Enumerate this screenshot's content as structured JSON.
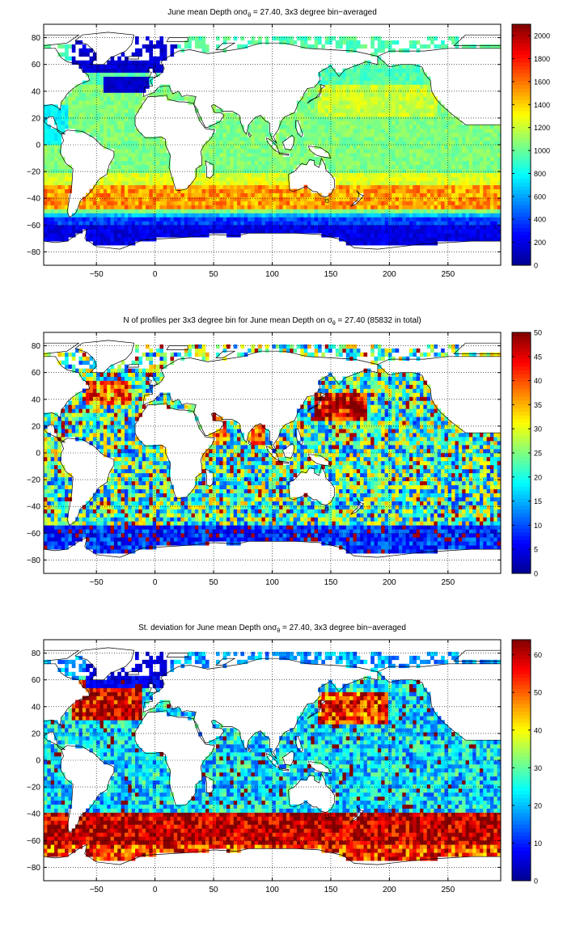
{
  "colors": {
    "jet": [
      "#00008f",
      "#0000ff",
      "#0080ff",
      "#00ffff",
      "#80ff80",
      "#ffff00",
      "#ff8000",
      "#ff0000",
      "#800000"
    ],
    "land": "#ffffff",
    "coast": "#000000"
  },
  "chart_data": [
    {
      "type": "heatmap",
      "title": "June mean Depth on σθ = 27.40, 3x3 degree bin−averaged",
      "title_parts": {
        "pre": "June mean Depth on",
        "sym": "σ",
        "sub": "θ",
        "post": " = 27.40, 3x3 degree bin−averaged"
      },
      "xlabel": "",
      "ylabel": "",
      "xlim": [
        -95,
        295
      ],
      "ylim": [
        -90,
        90
      ],
      "xticks": [
        -50,
        0,
        50,
        100,
        150,
        200,
        250
      ],
      "yticks": [
        -80,
        -60,
        -40,
        -20,
        0,
        20,
        40,
        60,
        80
      ],
      "colorbar": {
        "min": 0,
        "max": 2100,
        "ticks": [
          0,
          200,
          400,
          600,
          800,
          1000,
          1200,
          1400,
          1600,
          1800,
          2000
        ]
      },
      "grid": true,
      "field": "depth"
    },
    {
      "type": "heatmap",
      "title": "N of profiles per 3x3 degree bin for June mean Depth on σθ = 27.40 (85832 in total)",
      "title_parts": {
        "pre": "N of profiles per 3x3 degree bin for June mean Depth on ",
        "sym": "σ",
        "sub": "θ",
        "post": " = 27.40 (85832 in total)"
      },
      "xlabel": "",
      "ylabel": "",
      "xlim": [
        -95,
        295
      ],
      "ylim": [
        -90,
        90
      ],
      "xticks": [
        -50,
        0,
        50,
        100,
        150,
        200,
        250
      ],
      "yticks": [
        -80,
        -60,
        -40,
        -20,
        0,
        20,
        40,
        60,
        80
      ],
      "colorbar": {
        "min": 0,
        "max": 50,
        "ticks": [
          0,
          5,
          10,
          15,
          20,
          25,
          30,
          35,
          40,
          45,
          50
        ]
      },
      "grid": true,
      "field": "count"
    },
    {
      "type": "heatmap",
      "title": "St. deviation for June mean Depth on σθ = 27.40, 3x3 degree bin−averaged",
      "title_parts": {
        "pre": "St. deviation for June mean Depth on",
        "sym": "σ",
        "sub": "θ",
        "post": " = 27.40, 3x3 degree bin−averaged"
      },
      "xlabel": "",
      "ylabel": "",
      "xlim": [
        -95,
        295
      ],
      "ylim": [
        -90,
        90
      ],
      "xticks": [
        -50,
        0,
        50,
        100,
        150,
        200,
        250
      ],
      "yticks": [
        -80,
        -60,
        -40,
        -20,
        0,
        20,
        40,
        60,
        80
      ],
      "colorbar": {
        "min": 0,
        "max": 64,
        "ticks": [
          0,
          10,
          20,
          30,
          40,
          50,
          60
        ]
      },
      "grid": true,
      "field": "std"
    }
  ]
}
